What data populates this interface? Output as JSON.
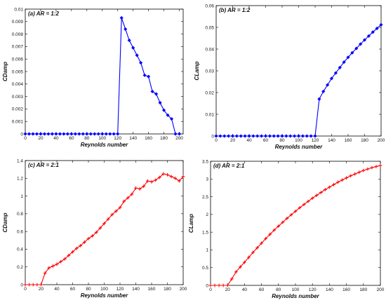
{
  "chart_data": [
    {
      "type": "line",
      "title": "(a) AR = 1:2",
      "xlabel": "Reynolds number",
      "ylabel": "CDamp",
      "xlim": [
        0,
        205
      ],
      "ylim": [
        0,
        0.01
      ],
      "xticks": [
        0,
        20,
        40,
        60,
        80,
        100,
        120,
        140,
        160,
        180,
        200
      ],
      "xtick_labels": [
        "0",
        "20",
        "40",
        "60",
        "80",
        "100",
        "120",
        "140",
        "160",
        "180",
        "200"
      ],
      "yticks": [
        0,
        0.001,
        0.002,
        0.003,
        0.004,
        0.005,
        0.006,
        0.007,
        0.008,
        0.009,
        0.01
      ],
      "ytick_labels": [
        "0",
        "0.001",
        "0.002",
        "0.003",
        "0.004",
        "0.005",
        "0.006",
        "0.007",
        "0.008",
        "0.009",
        "0.01"
      ],
      "color": "#0000ff",
      "marker": "diamond",
      "grid": false,
      "series": [
        {
          "x": [
            0,
            5,
            10,
            15,
            20,
            25,
            30,
            35,
            40,
            45,
            50,
            55,
            60,
            65,
            70,
            75,
            80,
            85,
            90,
            95,
            100,
            105,
            110,
            115,
            120,
            125,
            130,
            135,
            140,
            145,
            150,
            155,
            160,
            165,
            170,
            175,
            180,
            185,
            190,
            195,
            200
          ],
          "y": [
            0,
            0,
            0,
            0,
            0,
            0,
            0,
            0,
            0,
            0,
            0,
            0,
            0,
            0,
            0,
            0,
            0,
            0,
            0,
            0,
            0,
            0,
            0,
            0,
            0,
            0.0093,
            0.0084,
            0.0075,
            0.0069,
            0.0063,
            0.0057,
            0.0047,
            0.0046,
            0.0034,
            0.0032,
            0.0025,
            0.0019,
            0.0015,
            0.0012,
            0,
            0
          ]
        }
      ]
    },
    {
      "type": "line",
      "title": "(b) AR = 1:2",
      "xlabel": "Reynolds number",
      "ylabel": "CLamp",
      "xlim": [
        0,
        200
      ],
      "ylim": [
        0,
        0.06
      ],
      "xticks": [
        0,
        20,
        40,
        60,
        80,
        100,
        120,
        140,
        160,
        180,
        200
      ],
      "xtick_labels": [
        "0",
        "20",
        "40",
        "60",
        "80",
        "100",
        "120",
        "140",
        "160",
        "180",
        "200"
      ],
      "yticks": [
        0,
        0.01,
        0.02,
        0.03,
        0.04,
        0.05,
        0.06
      ],
      "ytick_labels": [
        "0",
        "0.01",
        "0.02",
        "0.03",
        "0.04",
        "0.05",
        "0.06"
      ],
      "color": "#0000ff",
      "marker": "diamond",
      "grid": false,
      "series": [
        {
          "x": [
            0,
            5,
            10,
            15,
            20,
            25,
            30,
            35,
            40,
            45,
            50,
            55,
            60,
            65,
            70,
            75,
            80,
            85,
            90,
            95,
            100,
            105,
            110,
            115,
            120,
            125,
            130,
            135,
            140,
            145,
            150,
            155,
            160,
            165,
            170,
            175,
            180,
            185,
            190,
            195,
            200
          ],
          "y": [
            0,
            0,
            0,
            0,
            0,
            0,
            0,
            0,
            0,
            0,
            0,
            0,
            0,
            0,
            0,
            0,
            0,
            0,
            0,
            0,
            0,
            0,
            0,
            0,
            0,
            0.017,
            0.0205,
            0.0235,
            0.0265,
            0.029,
            0.0315,
            0.034,
            0.0362,
            0.0383,
            0.0403,
            0.0423,
            0.0442,
            0.046,
            0.0478,
            0.0495,
            0.0512
          ]
        }
      ]
    },
    {
      "type": "line",
      "title": "(c) AR = 2:1",
      "xlabel": "Reynolds number",
      "ylabel": "CDamp",
      "xlim": [
        0,
        200
      ],
      "ylim": [
        0,
        1.4
      ],
      "xticks": [
        0,
        20,
        40,
        60,
        80,
        100,
        120,
        140,
        160,
        180,
        200
      ],
      "xtick_labels": [
        "0",
        "20",
        "40",
        "60",
        "80",
        "100",
        "120",
        "140",
        "160",
        "180",
        "200"
      ],
      "yticks": [
        0,
        0.2,
        0.4,
        0.6,
        0.8,
        1,
        1.2,
        1.4
      ],
      "ytick_labels": [
        "0",
        "0.2",
        "0.4",
        "0.6",
        "0.8",
        "1",
        "1.2",
        "1.4"
      ],
      "color": "#ff0000",
      "marker": "plus",
      "grid": false,
      "series": [
        {
          "x": [
            0,
            5,
            10,
            15,
            20,
            25,
            30,
            35,
            40,
            45,
            50,
            55,
            60,
            65,
            70,
            75,
            80,
            85,
            90,
            95,
            100,
            105,
            110,
            115,
            120,
            125,
            130,
            135,
            140,
            145,
            150,
            155,
            160,
            165,
            170,
            175,
            180,
            185,
            190,
            195,
            200
          ],
          "y": [
            0,
            0,
            0,
            0,
            0,
            0.13,
            0.19,
            0.21,
            0.23,
            0.26,
            0.29,
            0.33,
            0.37,
            0.41,
            0.44,
            0.48,
            0.52,
            0.55,
            0.59,
            0.64,
            0.69,
            0.74,
            0.79,
            0.83,
            0.87,
            0.94,
            0.98,
            1.02,
            1.09,
            1.08,
            1.11,
            1.17,
            1.16,
            1.18,
            1.21,
            1.25,
            1.24,
            1.22,
            1.2,
            1.17,
            1.22
          ]
        }
      ]
    },
    {
      "type": "line",
      "title": "(d) AR = 2:1",
      "xlabel": "Reynolds number",
      "ylabel": "CLamp",
      "xlim": [
        0,
        200
      ],
      "ylim": [
        0,
        3.5
      ],
      "xticks": [
        0,
        20,
        40,
        60,
        80,
        100,
        120,
        140,
        160,
        180,
        200
      ],
      "xtick_labels": [
        "0",
        "20",
        "40",
        "60",
        "80",
        "100",
        "120",
        "140",
        "160",
        "180",
        "200"
      ],
      "yticks": [
        0,
        0.5,
        1,
        1.5,
        2,
        2.5,
        3,
        3.5
      ],
      "ytick_labels": [
        "0",
        "0.5",
        "1",
        "1.5",
        "2",
        "2.5",
        "3",
        "3.5"
      ],
      "color": "#ff0000",
      "marker": "plus",
      "grid": false,
      "series": [
        {
          "x": [
            0,
            5,
            10,
            15,
            20,
            25,
            30,
            35,
            40,
            45,
            50,
            55,
            60,
            65,
            70,
            75,
            80,
            85,
            90,
            95,
            100,
            105,
            110,
            115,
            120,
            125,
            130,
            135,
            140,
            145,
            150,
            155,
            160,
            165,
            170,
            175,
            180,
            185,
            190,
            195,
            200
          ],
          "y": [
            0,
            0,
            0,
            0,
            0,
            0.18,
            0.38,
            0.52,
            0.65,
            0.79,
            0.93,
            1.06,
            1.19,
            1.32,
            1.44,
            1.56,
            1.67,
            1.78,
            1.89,
            1.99,
            2.09,
            2.19,
            2.28,
            2.37,
            2.46,
            2.54,
            2.62,
            2.7,
            2.77,
            2.84,
            2.91,
            2.97,
            3.03,
            3.09,
            3.14,
            3.19,
            3.24,
            3.28,
            3.32,
            3.35,
            3.38
          ]
        }
      ]
    }
  ]
}
